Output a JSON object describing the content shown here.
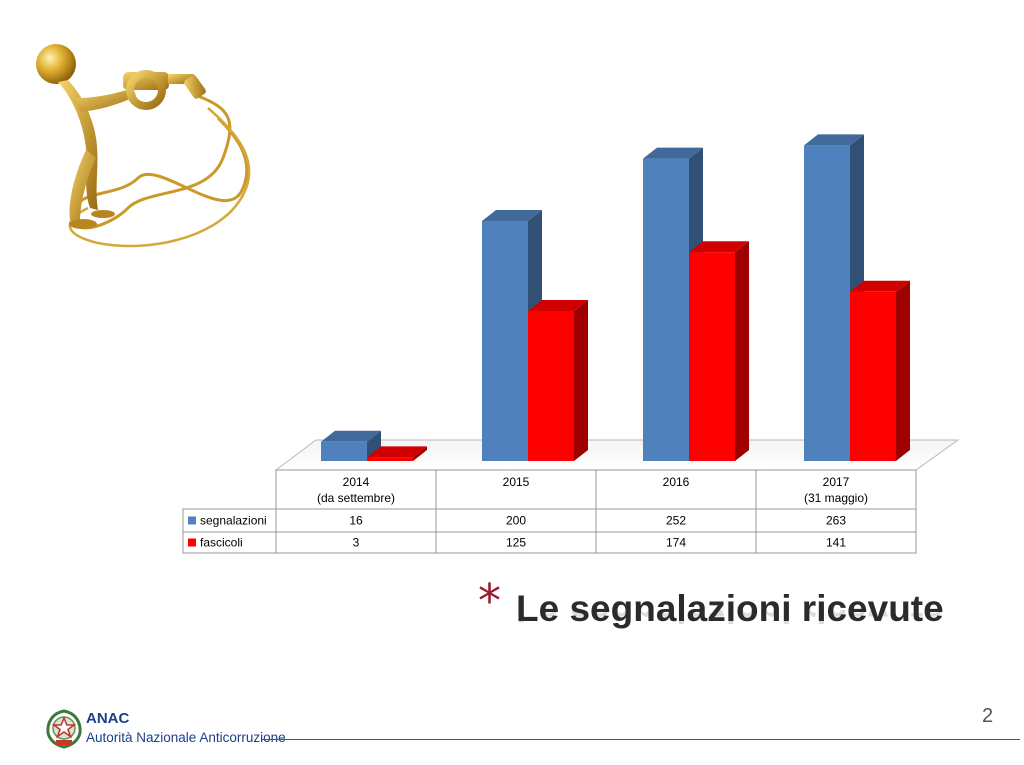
{
  "slide": {
    "bullet": "*",
    "title": "Le segnalazioni ricevute",
    "page_number": "2"
  },
  "footer": {
    "org_short": "ANAC",
    "org_long": "Autorità Nazionale Anticorruzione"
  },
  "colors": {
    "segnalazioni": "#4f81bd",
    "fascicoli": "#ff0000",
    "title_bullet": "#9b1c2c",
    "org_blue": "#1c3f8a"
  },
  "chart_data": {
    "type": "bar",
    "style": "3d-clustered-column-with-data-table",
    "categories": [
      [
        "2014",
        "(da settembre)"
      ],
      [
        "2015"
      ],
      [
        "2016"
      ],
      [
        "2017",
        "(31 maggio)"
      ]
    ],
    "series": [
      {
        "name": "segnalazioni",
        "values": [
          16,
          200,
          252,
          263
        ],
        "color": "#4f81bd"
      },
      {
        "name": "fascicoli",
        "values": [
          3,
          125,
          174,
          141
        ],
        "color": "#ff0000"
      }
    ],
    "ylim": [
      0,
      300
    ],
    "grid": false,
    "legend": "in data table"
  }
}
